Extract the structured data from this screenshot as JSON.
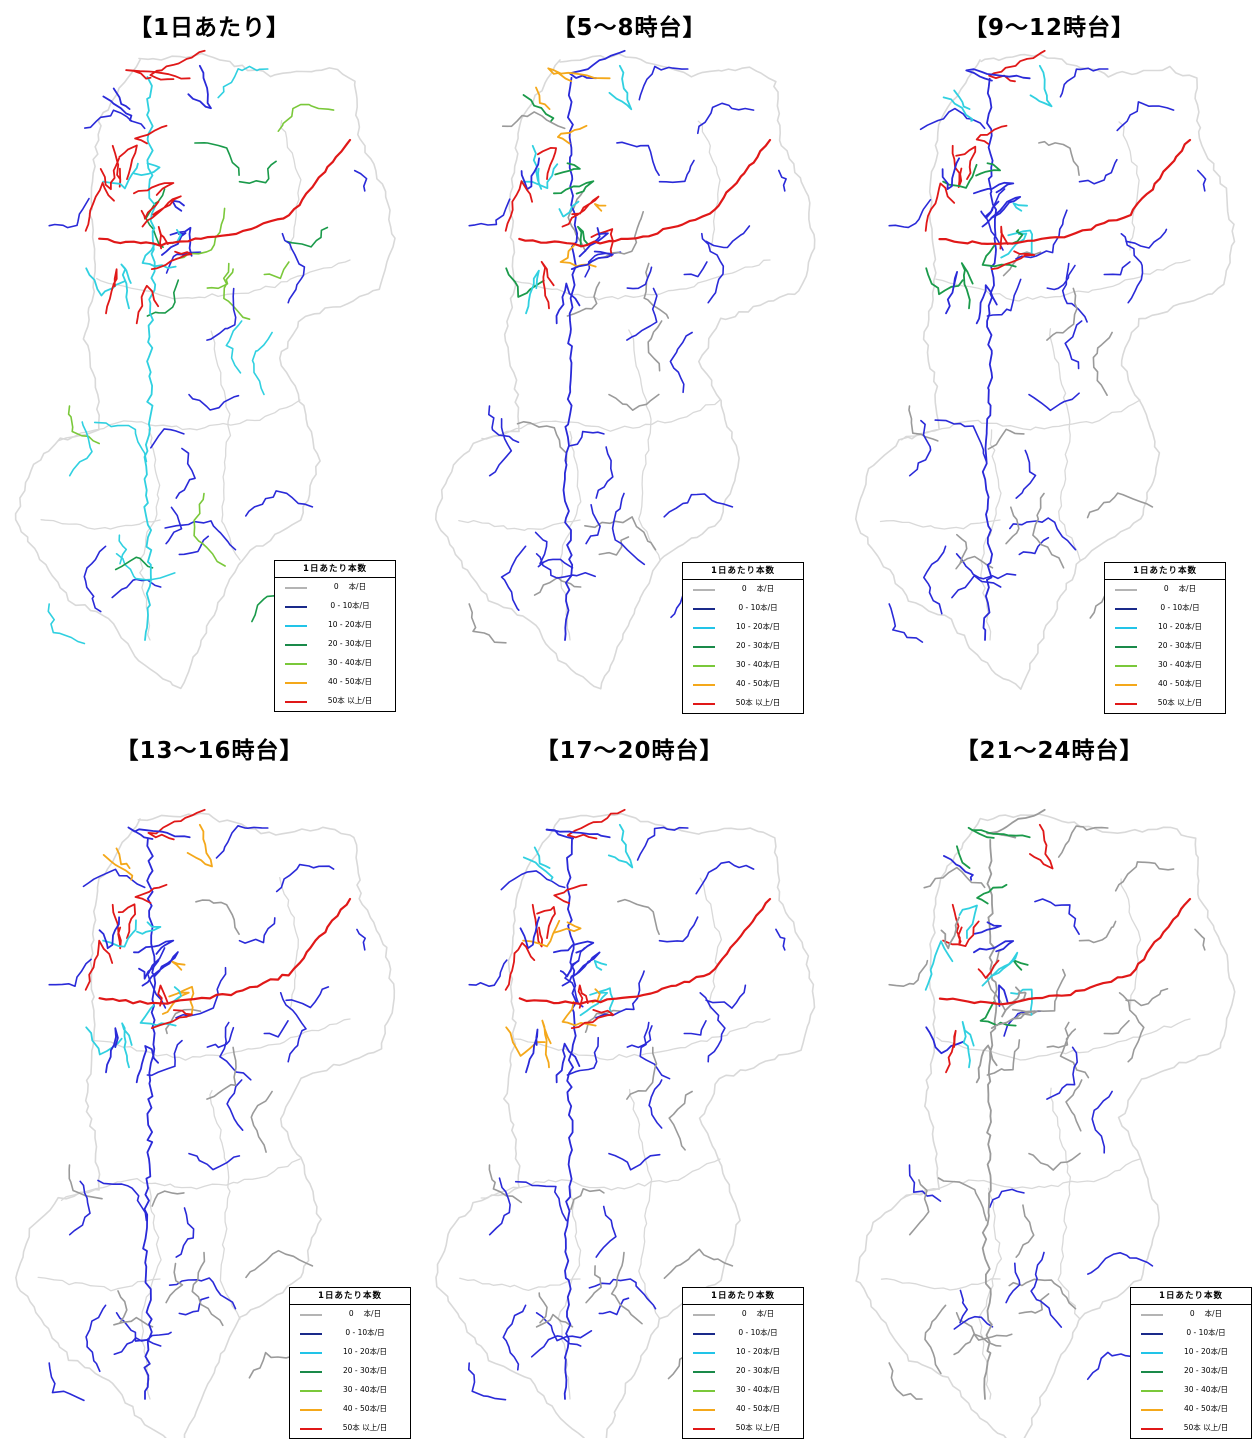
{
  "panels": [
    {
      "title": "【1日あたり】",
      "pattern": "all-day"
    },
    {
      "title": "【5～8時台】",
      "pattern": "morning"
    },
    {
      "title": "【9～12時台】",
      "pattern": "midday"
    },
    {
      "title": "【13～16時台】",
      "pattern": "afternoon"
    },
    {
      "title": "【17～20時台】",
      "pattern": "evening"
    },
    {
      "title": "【21～24時台】",
      "pattern": "night"
    }
  ],
  "legend": {
    "title": "1日あたり本数",
    "rows": [
      {
        "label": "0　 本/日",
        "color": "#b4b4b4"
      },
      {
        "label": "0 - 10本/日",
        "color": "#1a2a8a"
      },
      {
        "label": "10 - 20本/日",
        "color": "#22c4e8"
      },
      {
        "label": "20 - 30本/日",
        "color": "#1a8a4a"
      },
      {
        "label": "30 - 40本/日",
        "color": "#7ac83a"
      },
      {
        "label": "40 - 50本/日",
        "color": "#f4a81a"
      },
      {
        "label": "50本 以上/日",
        "color": "#e01818"
      }
    ]
  },
  "colors": {
    "boundary": "#d9d9d9",
    "band_0": "#9a9a9a",
    "band_0_10": "#2a2ad8",
    "band_10_20": "#30d0e0",
    "band_20_30": "#1a9a4a",
    "band_30_40": "#7ac83a",
    "band_40_50": "#f4a81a",
    "band_50_plus": "#e01818"
  }
}
